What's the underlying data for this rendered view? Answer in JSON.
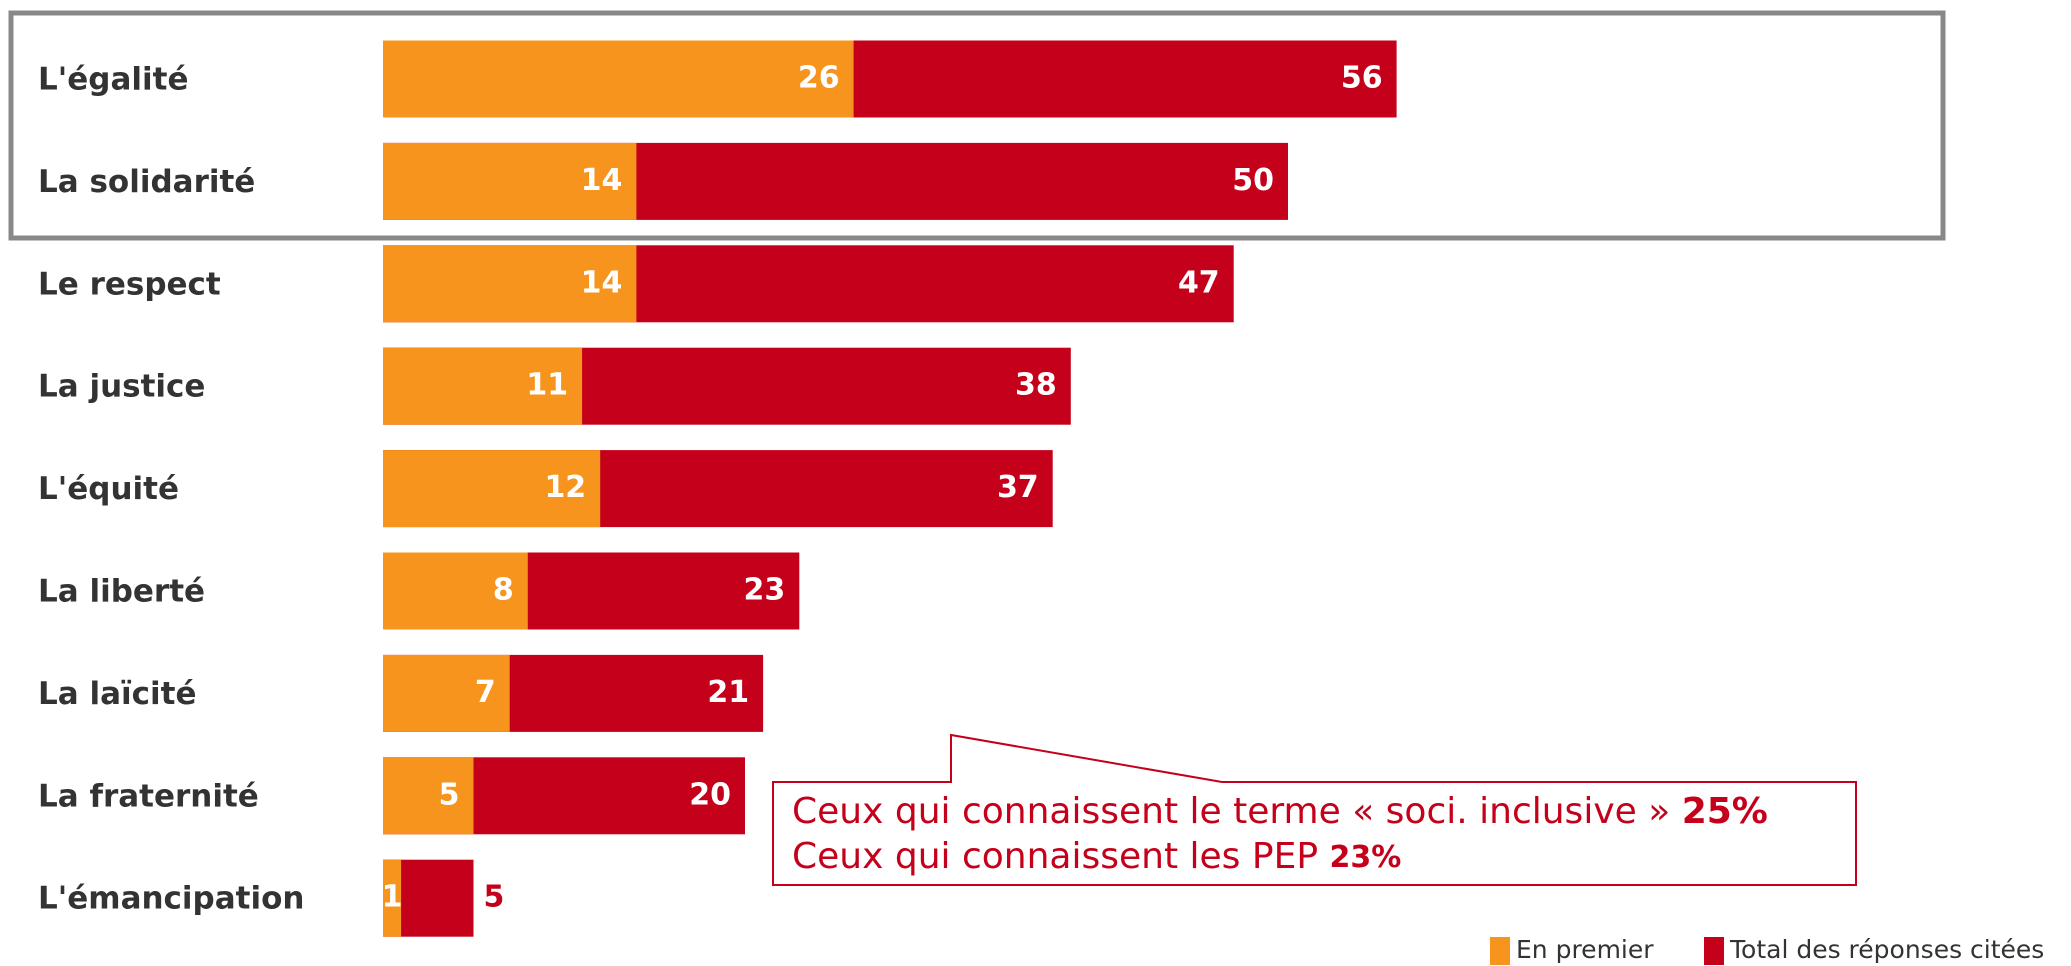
{
  "chart_data": {
    "type": "bar",
    "orientation": "horizontal",
    "categories": [
      "L'égalité",
      "La solidarité",
      "Le respect",
      "La justice",
      "L'équité",
      "La liberté",
      "La laïcité",
      "La fraternité",
      "L'émancipation"
    ],
    "series": [
      {
        "name": "En premier",
        "color": "#f7941d",
        "values": [
          26,
          14,
          14,
          11,
          12,
          8,
          7,
          5,
          1
        ]
      },
      {
        "name": "Total des réponses citées",
        "color": "#c4001a",
        "values": [
          56,
          50,
          47,
          38,
          37,
          23,
          21,
          20,
          5
        ]
      }
    ],
    "annotations": [
      {
        "text": "Ceux qui connaissent le terme « soci. inclusive »",
        "value": "25%"
      },
      {
        "text": "Ceux qui connaissent les PEP",
        "value": "23%"
      }
    ]
  }
}
